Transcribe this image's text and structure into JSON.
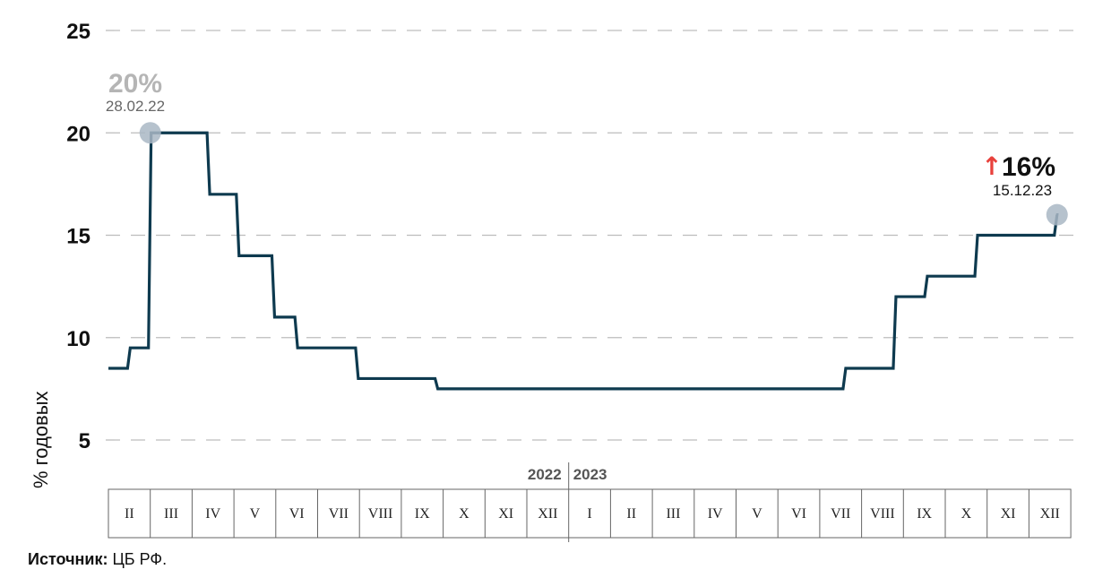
{
  "source": {
    "label": "Источник:",
    "text": " ЦБ РФ."
  },
  "colors": {
    "line": "#0e3a4f",
    "grid": "#bdbdbd",
    "marker": "#a9b7c4",
    "arrow": "#e8413c"
  },
  "chart_data": {
    "type": "line",
    "step": true,
    "ylabel": "% годовых",
    "yticks": [
      5,
      10,
      15,
      20,
      25
    ],
    "ylim": [
      5,
      25
    ],
    "grid": "horizontal dashed",
    "years": [
      "2022",
      "2023"
    ],
    "months": [
      "II",
      "III",
      "IV",
      "V",
      "VI",
      "VII",
      "VIII",
      "IX",
      "X",
      "XI",
      "XII",
      "I",
      "II",
      "III",
      "IV",
      "V",
      "VI",
      "VII",
      "VIII",
      "IX",
      "X",
      "XI",
      "XII"
    ],
    "series": [
      {
        "points": [
          {
            "month": 0.0,
            "rate": 8.5
          },
          {
            "month": 0.5,
            "rate": 9.5
          },
          {
            "month": 1.0,
            "rate": 20
          },
          {
            "month": 2.4,
            "rate": 17
          },
          {
            "month": 3.1,
            "rate": 14
          },
          {
            "month": 3.95,
            "rate": 11
          },
          {
            "month": 4.5,
            "rate": 9.5
          },
          {
            "month": 5.95,
            "rate": 8
          },
          {
            "month": 7.85,
            "rate": 7.5
          },
          {
            "month": 17.6,
            "rate": 8.5
          },
          {
            "month": 18.8,
            "rate": 12
          },
          {
            "month": 19.55,
            "rate": 13
          },
          {
            "month": 20.75,
            "rate": 15
          },
          {
            "month": 22.65,
            "rate": 16
          },
          {
            "month": 22.65,
            "rate": 16
          }
        ]
      }
    ],
    "annotations": {
      "start": {
        "value": "20%",
        "date": "28.02.22"
      },
      "end": {
        "arrow": "↑",
        "value": "16%",
        "date": "15.12.23"
      }
    }
  }
}
